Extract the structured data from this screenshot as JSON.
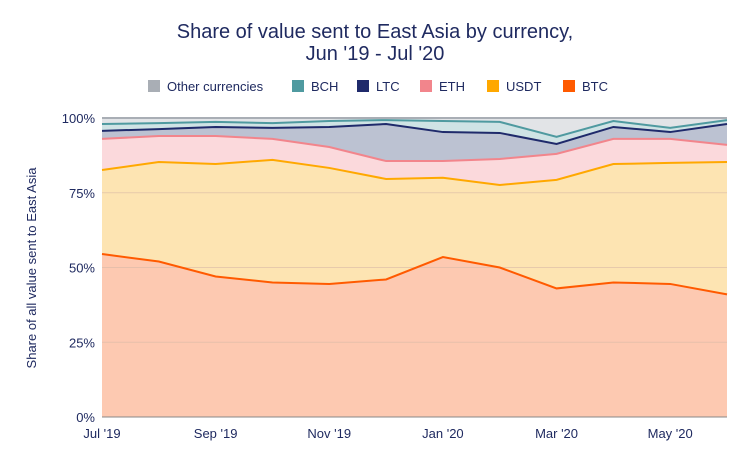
{
  "chart_data": {
    "type": "area",
    "stacked": true,
    "title": "Share of value sent to East Asia by currency,",
    "subtitle": "Jun '19 - Jul '20",
    "xlabel": "",
    "ylabel": "Share of all value sent to East Asia",
    "x": [
      "Jul '19",
      "Aug '19",
      "Sep '19",
      "Oct '19",
      "Nov '19",
      "Dec '19",
      "Jan '20",
      "Feb '20",
      "Mar '20",
      "Apr '20",
      "May '20",
      "Jun '20"
    ],
    "x_tick_labels": [
      "Jul '19",
      "Sep '19",
      "Nov '19",
      "Jan '20",
      "Mar '20",
      "May '20"
    ],
    "y_tick_labels": [
      "0%",
      "25%",
      "50%",
      "75%",
      "100%"
    ],
    "ylim": [
      0,
      100
    ],
    "grid": true,
    "legend_placement": "top",
    "series": [
      {
        "name": "BTC",
        "line_color": "#ff5a00",
        "fill_color": "#fdc9b1",
        "values": [
          54.5,
          52,
          47,
          45,
          44.5,
          46,
          53.5,
          50,
          43,
          45,
          44.5,
          41
        ]
      },
      {
        "name": "USDT",
        "line_color": "#ffa800",
        "fill_color": "#fde4b2",
        "values": [
          28.1,
          33.3,
          37.6,
          41,
          38.8,
          33.6,
          26.5,
          27.6,
          36.3,
          39.6,
          40.5,
          44.3
        ]
      },
      {
        "name": "ETH",
        "line_color": "#f2858c",
        "fill_color": "#fbd9dc",
        "values": [
          10.4,
          8.7,
          9.4,
          7,
          7,
          6,
          5.6,
          8.7,
          8.7,
          8.4,
          8,
          5.7
        ]
      },
      {
        "name": "LTC",
        "line_color": "#1f2a6b",
        "fill_color": "#bcc2d2",
        "values": [
          2.7,
          2.3,
          3,
          3.7,
          6.7,
          12.4,
          9.7,
          8.7,
          3.3,
          4,
          2.3,
          7
        ]
      },
      {
        "name": "BCH",
        "line_color": "#4f9aa0",
        "fill_color": "#cfe3e5",
        "values": [
          2.3,
          2,
          1.7,
          1.6,
          2,
          1.3,
          3.7,
          3.7,
          2.4,
          2,
          1.4,
          1.3
        ]
      },
      {
        "name": "Other currencies",
        "line_color": "#a9aeb5",
        "fill_color": "#e2e4e7",
        "values": [
          2,
          1.7,
          1.3,
          1.7,
          1,
          0.7,
          1,
          1.3,
          6.3,
          1,
          3.3,
          0.7
        ]
      }
    ]
  }
}
